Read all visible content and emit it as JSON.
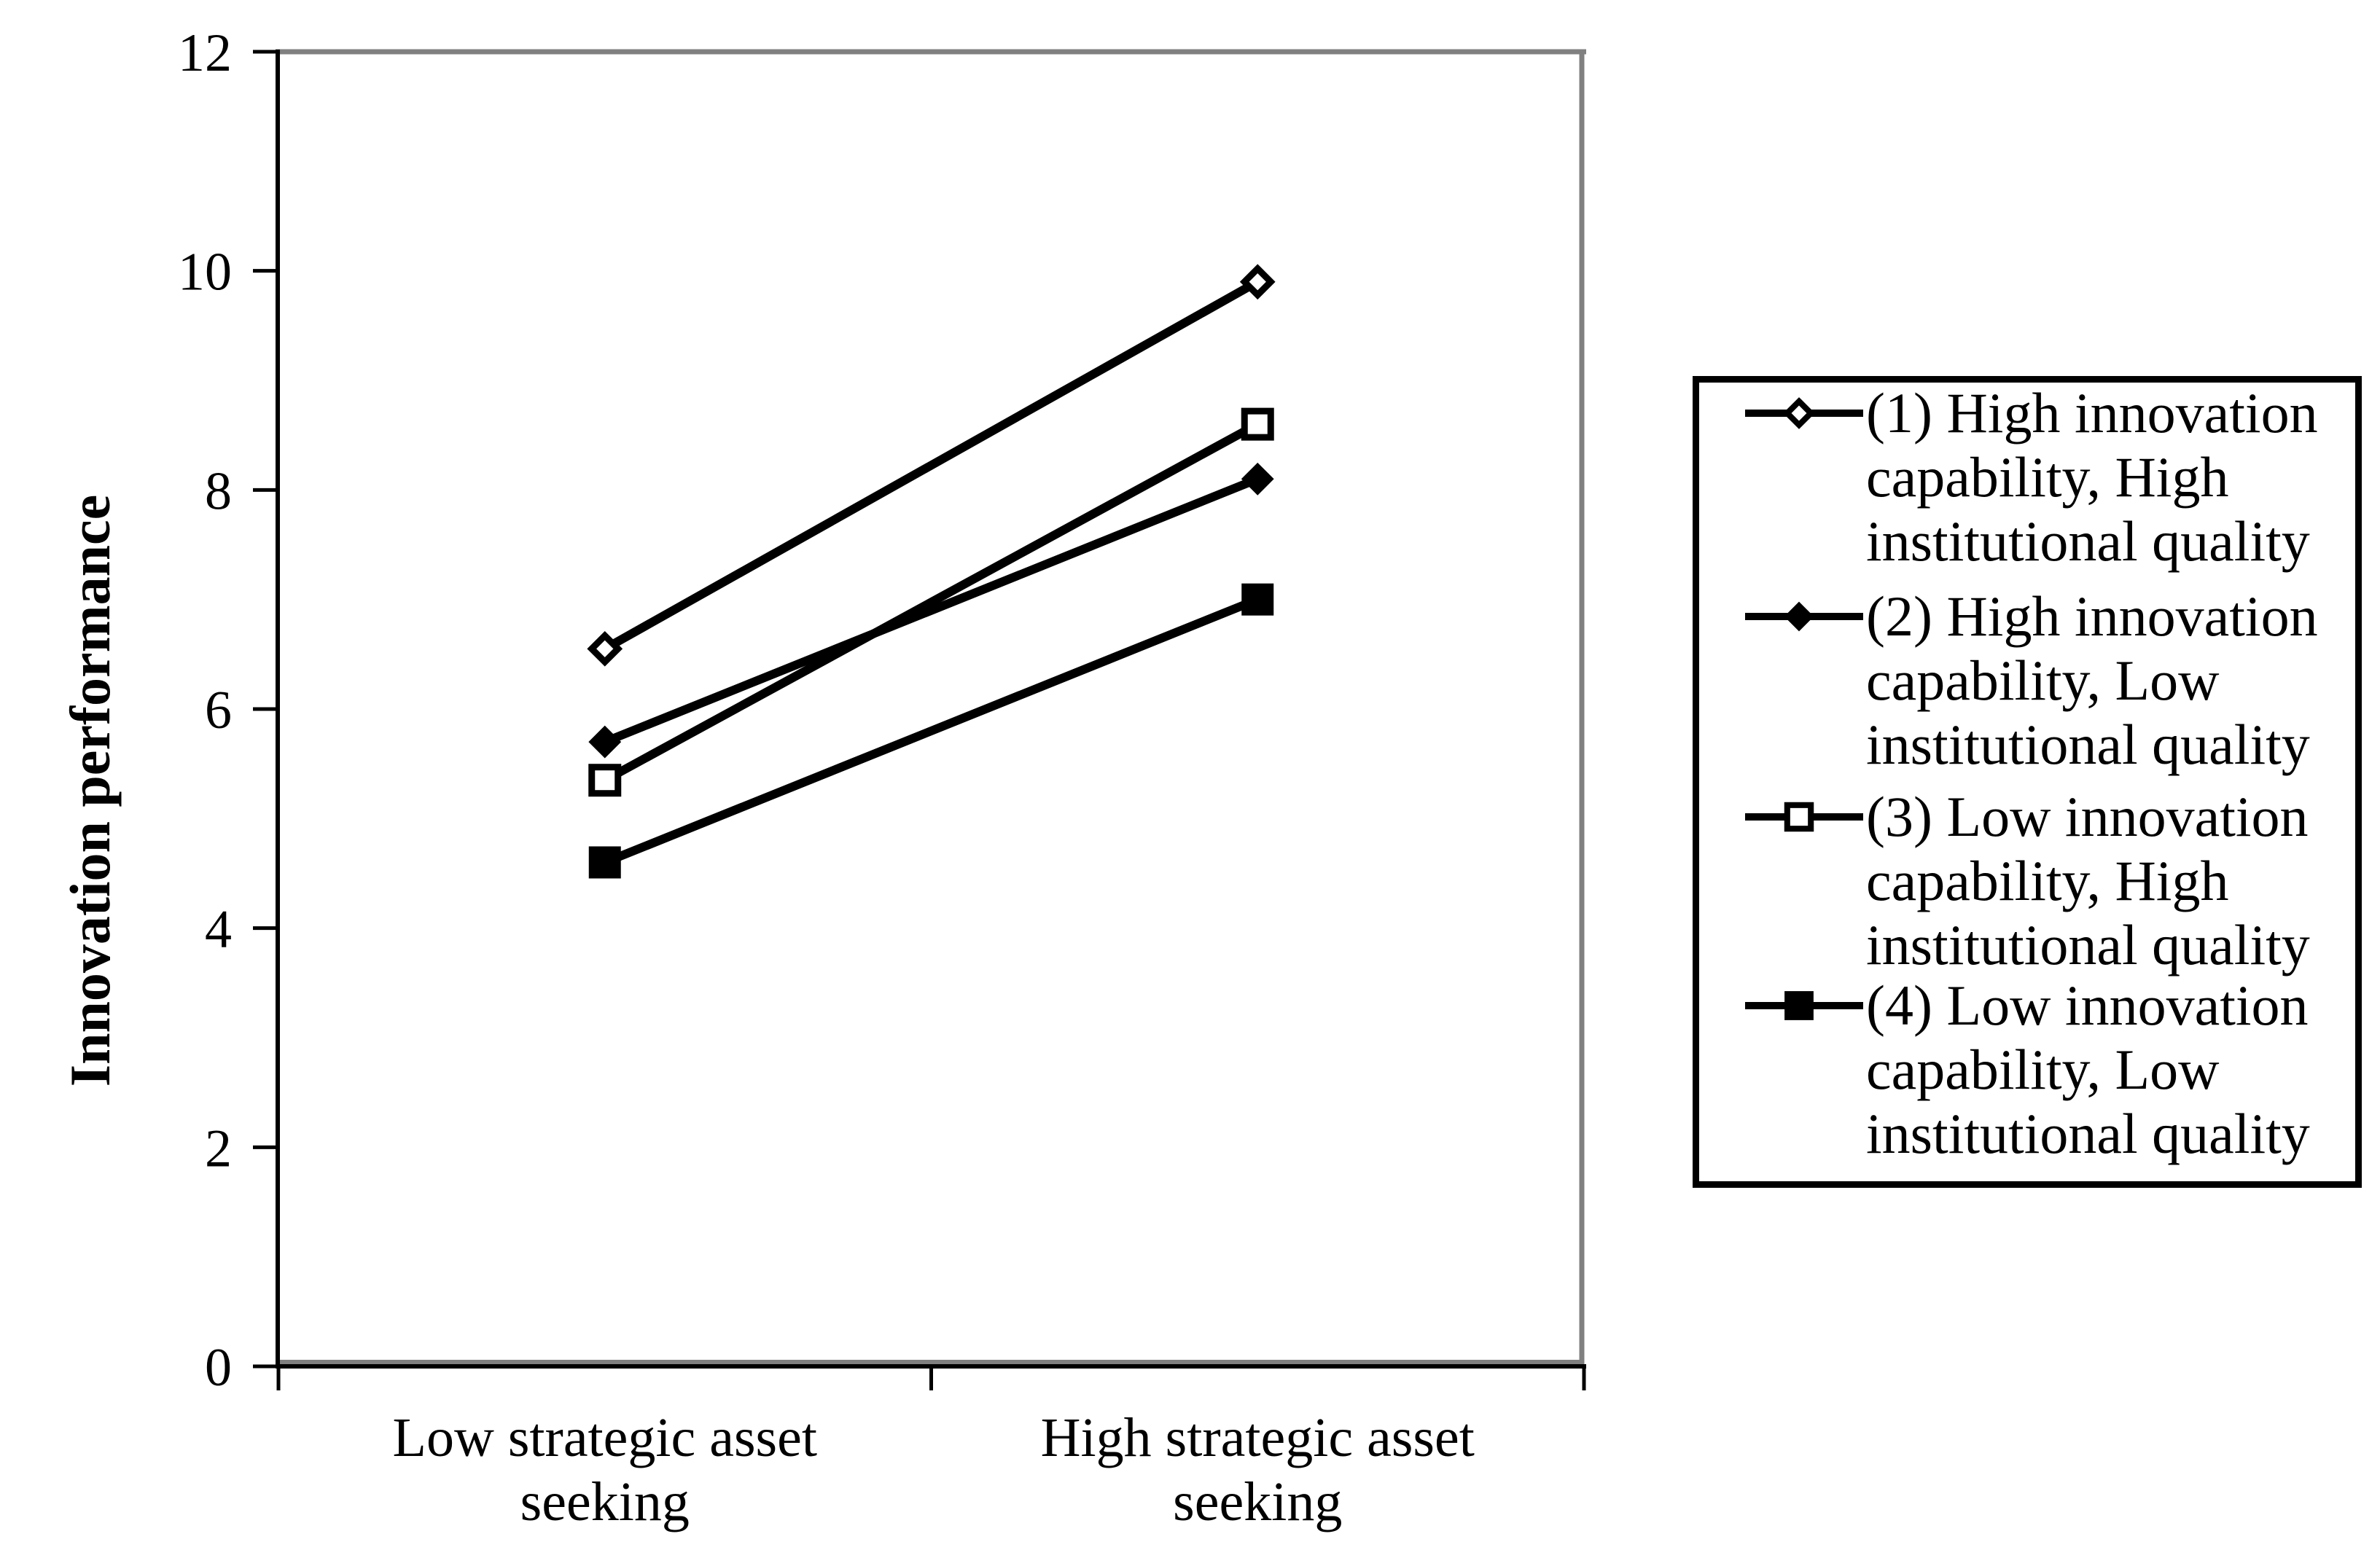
{
  "chart_data": {
    "type": "line",
    "title": "",
    "xlabel": "",
    "ylabel": "Innovation performance",
    "ylim": [
      0,
      12
    ],
    "yticks": [
      0,
      2,
      4,
      6,
      8,
      10,
      12
    ],
    "grid": false,
    "legend_position": "right",
    "categories": [
      {
        "lines": [
          "Low strategic asset",
          "seeking"
        ],
        "label": "Low strategic asset seeking"
      },
      {
        "lines": [
          "High strategic asset",
          "seeking"
        ],
        "label": "High strategic asset seeking"
      }
    ],
    "series": [
      {
        "name": "(1) High innovation capability, High institutional quality",
        "name_lines": [
          "(1) High innovation",
          "capability, High",
          "institutional quality"
        ],
        "marker": "open-diamond",
        "values": [
          6.55,
          9.9
        ]
      },
      {
        "name": "(2) High innovation capability, Low institutional quality",
        "name_lines": [
          "(2) High innovation",
          "capability, Low",
          "institutional quality"
        ],
        "marker": "filled-diamond",
        "values": [
          5.7,
          8.1
        ]
      },
      {
        "name": "(3) Low innovation capability, High institutional quality",
        "name_lines": [
          "(3) Low innovation",
          "capability, High",
          "institutional quality"
        ],
        "marker": "open-square",
        "values": [
          5.35,
          8.6
        ]
      },
      {
        "name": "(4) Low innovation capability, Low institutional quality",
        "name_lines": [
          "(4) Low innovation",
          "capability, Low",
          "institutional quality"
        ],
        "marker": "filled-square",
        "values": [
          4.6,
          7.0
        ]
      }
    ],
    "colors": {
      "series_line": "#000000",
      "plot_border": "#808080",
      "axis": "#000000",
      "text": "#000000",
      "background": "#ffffff"
    }
  }
}
